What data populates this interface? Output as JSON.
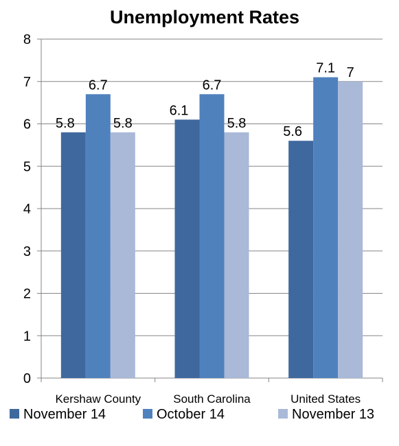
{
  "chart_data": {
    "type": "bar",
    "title": "Unemployment Rates",
    "xlabel": "",
    "ylabel": "",
    "categories": [
      "Kershaw County",
      "South Carolina",
      "United States"
    ],
    "series": [
      {
        "name": "November 14",
        "color": "#3F689E",
        "values": [
          5.8,
          6.1,
          5.6
        ]
      },
      {
        "name": "October 14",
        "color": "#4F81BD",
        "values": [
          6.7,
          6.7,
          7.1
        ]
      },
      {
        "name": "November 13",
        "color": "#AAB9D8",
        "values": [
          5.8,
          5.8,
          7
        ]
      }
    ],
    "ylim": [
      0,
      8
    ],
    "yticks": [
      "0",
      "1",
      "2",
      "3",
      "4",
      "5",
      "6",
      "7",
      "8"
    ],
    "grid": true,
    "legend": "bottom",
    "data_labels": true
  }
}
